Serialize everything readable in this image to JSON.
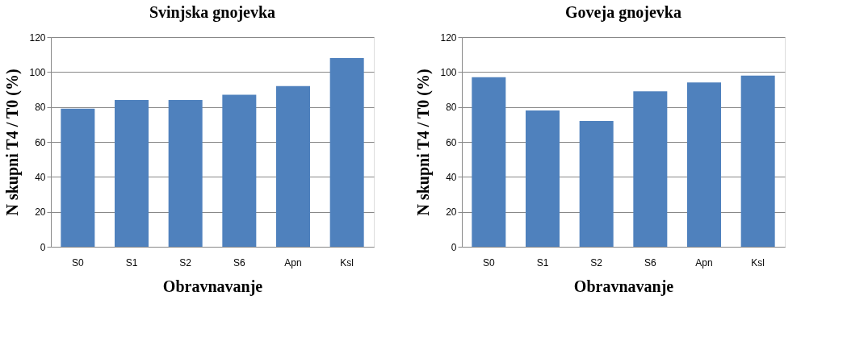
{
  "chart_data": [
    {
      "type": "bar",
      "title": "Svinjska gnojevka",
      "xlabel": "Obravnavanje",
      "ylabel": "N skupni T4 / T0 (%)",
      "categories": [
        "S0",
        "S1",
        "S2",
        "S6",
        "Apn",
        "Ksl"
      ],
      "values": [
        79,
        84,
        84,
        87,
        92,
        108
      ],
      "color": "#4f81bd",
      "ylim": [
        0,
        120
      ],
      "yticks": [
        0,
        20,
        40,
        60,
        80,
        100,
        120
      ],
      "grid": "y"
    },
    {
      "type": "bar",
      "title": "Goveja gnojevka",
      "xlabel": "Obravnavanje",
      "ylabel": "N skupni T4 / T0 (%)",
      "categories": [
        "S0",
        "S1",
        "S2",
        "S6",
        "Apn",
        "Ksl"
      ],
      "values": [
        97,
        78,
        72,
        89,
        94,
        98
      ],
      "color": "#4f81bd",
      "ylim": [
        0,
        120
      ],
      "yticks": [
        0,
        20,
        40,
        60,
        80,
        100,
        120
      ],
      "grid": "y"
    }
  ]
}
